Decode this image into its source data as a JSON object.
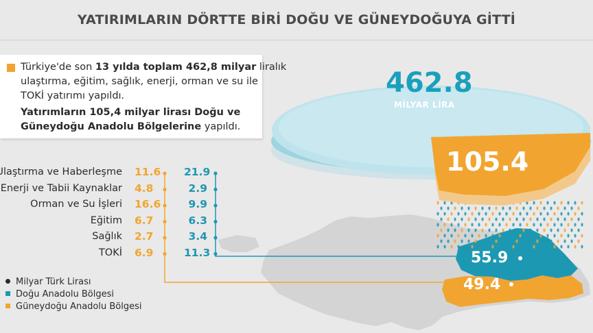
{
  "title": "YATIRIMLARIN DÖRTTE BİRİ DOĞU VE GÜNEYDOĞUYA GİTTİ",
  "info": {
    "line1_a": "Türkiye'de son ",
    "line1_b": "13 yılda toplam 462,8 milyar",
    "line1_c": " liralık",
    "line2": "ulaştırma, eğitim, sağlık, enerji, orman ve su ile",
    "line3": "TOKİ yatırımı yapıldı.",
    "line4": "Yatırımların 105,4 milyar lirası Doğu ve",
    "line5_a": "Güneydoğu Anadolu Bölgelerine",
    "line5_b": " yapıldı."
  },
  "totals": {
    "overall": "462.8",
    "overall_unit": "MİLYAR LİRA",
    "region_total": "105.4",
    "dogu_total": "55.9",
    "guneydogu_total": "49.4"
  },
  "colors": {
    "dogu": "#1d98b3",
    "guneydogu": "#f1a530",
    "disc": "#bfe3ec",
    "map": "#d3d3d3"
  },
  "chart_data": {
    "type": "table",
    "categories": [
      "Ulaştırma ve Haberleşme",
      "Enerji ve Tabii Kaynaklar",
      "Orman ve Su İşleri",
      "Eğitim",
      "Sağlık",
      "TOKİ"
    ],
    "series": [
      {
        "name": "Güneydoğu Anadolu Bölgesi",
        "values": [
          "11.6",
          "4.8",
          "16.6",
          "6.7",
          "2.7",
          "6.9"
        ]
      },
      {
        "name": "Doğu Anadolu Bölgesi",
        "values": [
          "21.9",
          "2.9",
          "9.9",
          "6.3",
          "3.4",
          "11.3"
        ]
      }
    ],
    "totals": {
      "overall": 462.8,
      "regions": 105.4,
      "dogu": 55.9,
      "guneydogu": 49.4
    }
  },
  "legend": [
    {
      "label": "Milyar Türk Lirası",
      "swatch": "dot",
      "color": "#2b2b2b"
    },
    {
      "label": "Doğu Anadolu Bölgesi",
      "swatch": "square",
      "color": "#1d98b3"
    },
    {
      "label": "Güneydoğu Anadolu Bölgesi",
      "swatch": "square",
      "color": "#f1a530"
    }
  ]
}
